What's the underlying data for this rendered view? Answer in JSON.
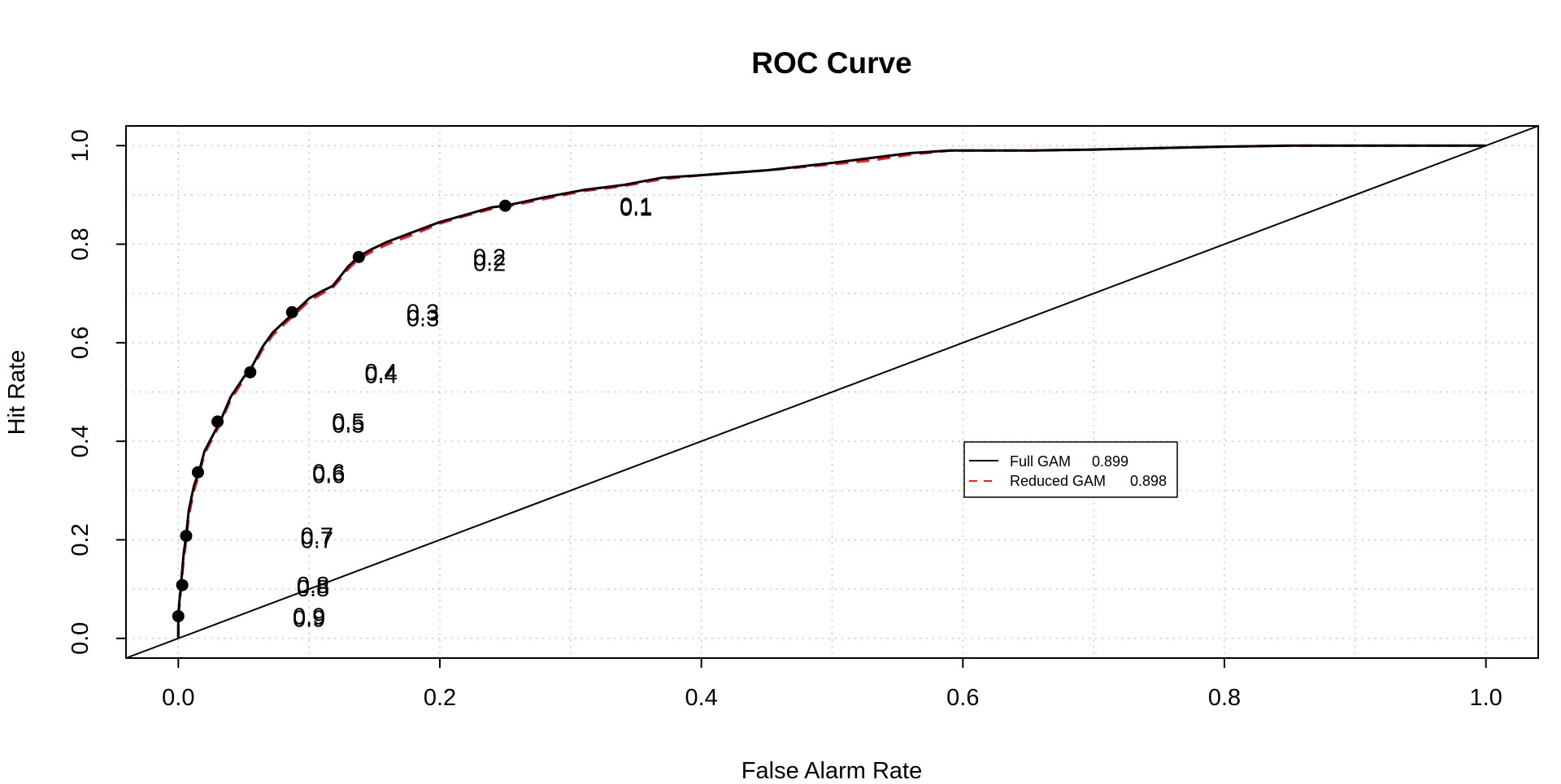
{
  "chart_data": {
    "type": "line",
    "title": "ROC Curve",
    "xlabel": "False Alarm Rate",
    "ylabel": "Hit Rate",
    "xlim": [
      -0.04,
      1.04
    ],
    "ylim": [
      -0.04,
      1.04
    ],
    "x_ticks": [
      "0.0",
      "0.2",
      "0.4",
      "0.6",
      "0.8",
      "1.0"
    ],
    "y_ticks": [
      "0.0",
      "0.2",
      "0.4",
      "0.6",
      "0.8",
      "1.0"
    ],
    "grid": true,
    "legend_position": "center-right",
    "colors": {
      "full": "#000000",
      "reduced": "#e8202a",
      "diagonal": "#000000"
    },
    "series": [
      {
        "name": "Full GAM",
        "score": "0.899",
        "x": [
          0,
          0,
          0.002,
          0.004,
          0.006,
          0.008,
          0.012,
          0.016,
          0.02,
          0.026,
          0.032,
          0.04,
          0.05,
          0.056,
          0.064,
          0.072,
          0.08,
          0.088,
          0.1,
          0.11,
          0.118,
          0.124,
          0.13,
          0.138,
          0.148,
          0.16,
          0.18,
          0.2,
          0.22,
          0.24,
          0.25,
          0.28,
          0.31,
          0.34,
          0.37,
          0.4,
          0.45,
          0.5,
          0.53,
          0.56,
          0.59,
          0.65,
          0.7,
          0.75,
          0.8,
          0.85,
          0.9,
          0.95,
          1.0
        ],
        "y": [
          0,
          0.05,
          0.11,
          0.17,
          0.21,
          0.26,
          0.31,
          0.34,
          0.38,
          0.41,
          0.44,
          0.49,
          0.53,
          0.55,
          0.59,
          0.62,
          0.64,
          0.66,
          0.69,
          0.705,
          0.715,
          0.735,
          0.755,
          0.775,
          0.79,
          0.805,
          0.825,
          0.845,
          0.86,
          0.875,
          0.878,
          0.895,
          0.91,
          0.92,
          0.935,
          0.94,
          0.95,
          0.965,
          0.975,
          0.985,
          0.99,
          0.99,
          0.992,
          0.995,
          0.998,
          1.0,
          1.0,
          1.0,
          1.0
        ],
        "thresholds": [
          {
            "x": 0.0,
            "y": 0.045,
            "label": "0.9"
          },
          {
            "x": 0.003,
            "y": 0.108,
            "label": "0.8"
          },
          {
            "x": 0.006,
            "y": 0.208,
            "label": "0.7"
          },
          {
            "x": 0.015,
            "y": 0.337,
            "label": "0.6"
          },
          {
            "x": 0.03,
            "y": 0.44,
            "label": "0.5"
          },
          {
            "x": 0.055,
            "y": 0.54,
            "label": "0.4"
          },
          {
            "x": 0.087,
            "y": 0.662,
            "label": "0.3"
          },
          {
            "x": 0.138,
            "y": 0.774,
            "label": "0.2"
          },
          {
            "x": 0.25,
            "y": 0.878,
            "label": "0.1"
          }
        ]
      },
      {
        "name": "Reduced GAM",
        "score": "0.898",
        "x": [
          0,
          0,
          0.002,
          0.004,
          0.006,
          0.008,
          0.012,
          0.016,
          0.02,
          0.026,
          0.032,
          0.04,
          0.05,
          0.056,
          0.064,
          0.072,
          0.08,
          0.088,
          0.1,
          0.11,
          0.118,
          0.124,
          0.13,
          0.138,
          0.148,
          0.16,
          0.18,
          0.2,
          0.22,
          0.24,
          0.25,
          0.28,
          0.31,
          0.34,
          0.37,
          0.4,
          0.45,
          0.5,
          0.53,
          0.56,
          0.59,
          0.65,
          0.7,
          0.75,
          0.8,
          0.85,
          0.9,
          0.95,
          1.0
        ],
        "y": [
          0,
          0.04,
          0.1,
          0.16,
          0.2,
          0.25,
          0.3,
          0.335,
          0.375,
          0.405,
          0.435,
          0.485,
          0.525,
          0.545,
          0.585,
          0.615,
          0.635,
          0.655,
          0.685,
          0.7,
          0.712,
          0.73,
          0.75,
          0.77,
          0.785,
          0.8,
          0.82,
          0.842,
          0.858,
          0.872,
          0.876,
          0.892,
          0.908,
          0.918,
          0.932,
          0.94,
          0.95,
          0.962,
          0.97,
          0.982,
          0.99,
          0.99,
          0.992,
          0.995,
          0.998,
          1.0,
          1.0,
          1.0,
          1.0
        ],
        "thresholds": [
          {
            "x": 0.0,
            "y": 0.04,
            "label": "0.9"
          },
          {
            "x": 0.003,
            "y": 0.102,
            "label": "0.8"
          },
          {
            "x": 0.006,
            "y": 0.2,
            "label": "0.7"
          },
          {
            "x": 0.015,
            "y": 0.332,
            "label": "0.6"
          },
          {
            "x": 0.03,
            "y": 0.434,
            "label": "0.5"
          },
          {
            "x": 0.055,
            "y": 0.535,
            "label": "0.4"
          },
          {
            "x": 0.087,
            "y": 0.65,
            "label": "0.3"
          },
          {
            "x": 0.138,
            "y": 0.762,
            "label": "0.2"
          },
          {
            "x": 0.25,
            "y": 0.874,
            "label": "0.1"
          }
        ]
      }
    ]
  }
}
